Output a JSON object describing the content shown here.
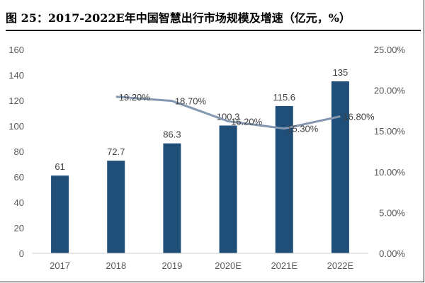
{
  "header": {
    "title": "图 25：2017-2022E年中国智慧出行市场规模及增速（亿元，%）"
  },
  "chart_data": {
    "type": "bar",
    "title": "图 25：2017-2022E年中国智慧出行市场规模及增速（亿元，%）",
    "categories": [
      "2017",
      "2018",
      "2019",
      "2020E",
      "2021E",
      "2022E"
    ],
    "series": [
      {
        "type": "bar",
        "axis": "left",
        "values": [
          61,
          72.7,
          86.3,
          100.3,
          115.6,
          135
        ],
        "labels": [
          "61",
          "72.7",
          "86.3",
          "100.3",
          "115.6",
          "135"
        ],
        "color": "#1f4e79"
      },
      {
        "type": "line",
        "axis": "right",
        "values": [
          null,
          19.2,
          18.7,
          16.2,
          15.3,
          16.8
        ],
        "labels": [
          null,
          "19.20%",
          "18.70%",
          "16.20%",
          "15.30%",
          "16.80%"
        ],
        "color": "#8497b0"
      }
    ],
    "ylim": [
      0,
      160
    ],
    "yticks": [
      "0",
      "20",
      "40",
      "60",
      "80",
      "100",
      "120",
      "140",
      "160"
    ],
    "y2lim": [
      0,
      25
    ],
    "y2ticks": [
      "0.00%",
      "5.00%",
      "10.00%",
      "15.00%",
      "20.00%",
      "25.00%"
    ],
    "grid": false,
    "legend": "none"
  }
}
